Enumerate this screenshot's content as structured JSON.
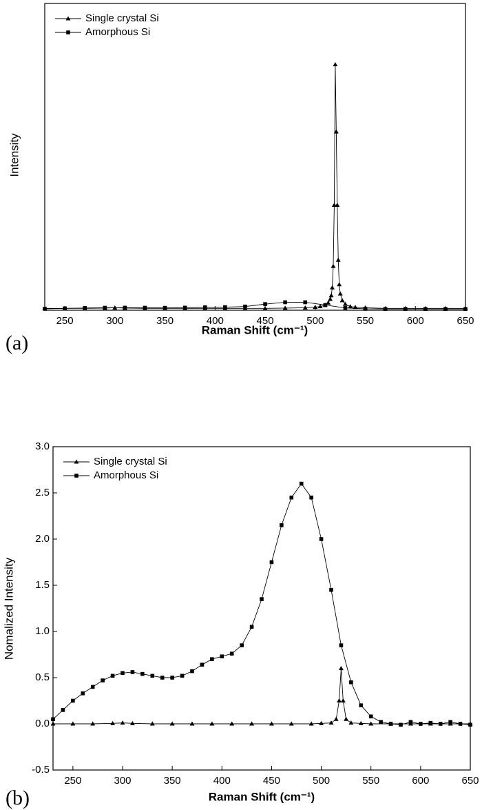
{
  "chart_data": [
    {
      "type": "line",
      "panel_label": "(a)",
      "xlabel": "Raman Shift (cm⁻¹)",
      "ylabel": "Intensity",
      "xlim": [
        230,
        650
      ],
      "xticks": [
        250,
        300,
        350,
        400,
        450,
        500,
        550,
        600,
        650
      ],
      "ylim": [
        -0.02,
        5
      ],
      "legend": "upper left",
      "series": [
        {
          "name": "Single crystal Si",
          "color": "#000000",
          "marker": "triangle",
          "x": [
            230,
            250,
            270,
            290,
            300,
            310,
            330,
            350,
            370,
            390,
            410,
            430,
            450,
            470,
            490,
            500,
            505,
            510,
            513,
            515,
            516,
            517,
            518,
            519,
            520,
            521,
            522,
            523,
            524,
            525,
            527,
            530,
            535,
            540,
            550,
            570,
            590,
            610,
            630,
            650
          ],
          "values": [
            0.01,
            0.01,
            0.01,
            0.015,
            0.02,
            0.015,
            0.01,
            0.01,
            0.01,
            0.01,
            0.01,
            0.01,
            0.01,
            0.015,
            0.02,
            0.03,
            0.04,
            0.06,
            0.1,
            0.16,
            0.22,
            0.35,
            0.7,
            1.7,
            4.0,
            2.9,
            1.7,
            0.8,
            0.4,
            0.25,
            0.14,
            0.08,
            0.04,
            0.03,
            0.02,
            0.01,
            0.01,
            0.01,
            0.01,
            0.01
          ]
        },
        {
          "name": "Amorphous Si",
          "color": "#000000",
          "marker": "square",
          "x": [
            230,
            250,
            270,
            290,
            310,
            330,
            350,
            370,
            390,
            410,
            430,
            450,
            470,
            490,
            510,
            530,
            550,
            570,
            590,
            610,
            630,
            650
          ],
          "values": [
            0.003,
            0.01,
            0.016,
            0.02,
            0.021,
            0.02,
            0.019,
            0.022,
            0.027,
            0.03,
            0.04,
            0.08,
            0.11,
            0.11,
            0.065,
            0.017,
            0.003,
            0,
            0,
            0,
            0,
            0
          ]
        }
      ]
    },
    {
      "type": "line",
      "panel_label": "(b)",
      "xlabel": "Raman Shift (cm⁻¹)",
      "ylabel": "Nomalized Intensity",
      "xlim": [
        230,
        650
      ],
      "xticks": [
        250,
        300,
        350,
        400,
        450,
        500,
        550,
        600,
        650
      ],
      "ylim": [
        -0.5,
        3.0
      ],
      "yticks": [
        -0.5,
        {
          "value": 0,
          "label": "0.0"
        },
        0.5,
        {
          "value": 1,
          "label": "1.0"
        },
        1.5,
        {
          "value": 2,
          "label": "2.0"
        },
        2.5,
        {
          "value": 3,
          "label": "3.0"
        }
      ],
      "legend": "upper left",
      "series": [
        {
          "name": "Single crystal Si",
          "color": "#000000",
          "marker": "triangle",
          "x": [
            230,
            250,
            270,
            290,
            300,
            310,
            330,
            350,
            370,
            390,
            410,
            430,
            450,
            470,
            490,
            500,
            510,
            515,
            518,
            520,
            522,
            525,
            530,
            540,
            550,
            570,
            590,
            610,
            630,
            650
          ],
          "values": [
            0,
            0,
            0,
            0.005,
            0.01,
            0.005,
            0,
            0,
            0,
            0,
            0,
            0,
            0,
            0,
            0,
            0.005,
            0.01,
            0.05,
            0.25,
            0.6,
            0.25,
            0.05,
            0.01,
            0.005,
            0,
            0,
            0,
            0,
            0,
            0
          ]
        },
        {
          "name": "Amorphous Si",
          "color": "#000000",
          "marker": "square",
          "x": [
            230,
            240,
            250,
            260,
            270,
            280,
            290,
            300,
            310,
            320,
            330,
            340,
            350,
            360,
            370,
            380,
            390,
            400,
            410,
            420,
            430,
            440,
            450,
            460,
            470,
            480,
            490,
            500,
            510,
            520,
            530,
            540,
            550,
            560,
            570,
            580,
            590,
            600,
            610,
            620,
            630,
            640,
            650
          ],
          "values": [
            0.05,
            0.15,
            0.25,
            0.33,
            0.4,
            0.47,
            0.52,
            0.55,
            0.56,
            0.54,
            0.52,
            0.5,
            0.5,
            0.52,
            0.57,
            0.64,
            0.7,
            0.73,
            0.76,
            0.85,
            1.05,
            1.35,
            1.75,
            2.15,
            2.45,
            2.6,
            2.45,
            2.0,
            1.45,
            0.85,
            0.45,
            0.2,
            0.08,
            0.02,
            0,
            -0.01,
            0.02,
            0,
            0.01,
            0,
            0.02,
            0,
            -0.01
          ]
        }
      ]
    }
  ]
}
